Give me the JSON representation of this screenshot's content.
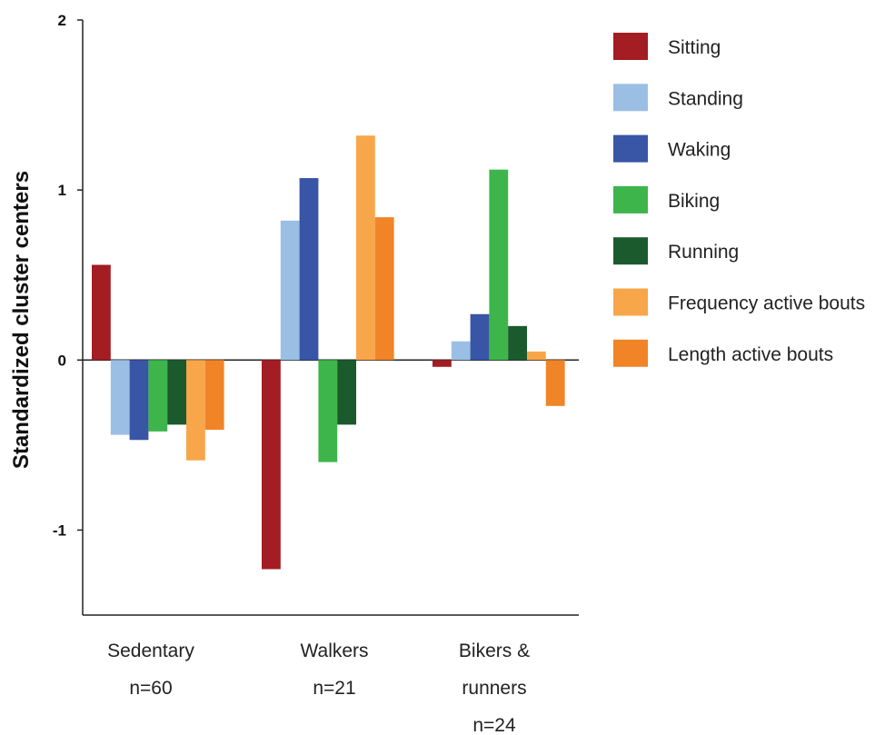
{
  "chart_data": {
    "type": "bar",
    "ylabel": "Standardized cluster centers",
    "xlabel": "",
    "ylim": [
      -1.5,
      2
    ],
    "yticks": [
      2,
      1,
      0,
      -1
    ],
    "ytick_labels": [
      "2",
      "1",
      "0",
      "-1"
    ],
    "categories": [
      {
        "name": "Sedentary",
        "n": "n=60",
        "lines": [
          "Sedentary",
          "n=60"
        ]
      },
      {
        "name": "Walkers",
        "n": "n=21",
        "lines": [
          "Walkers",
          "n=21"
        ]
      },
      {
        "name": "Bikers & runners",
        "n": "n=24",
        "lines": [
          "Bikers &",
          "runners",
          "n=24"
        ]
      }
    ],
    "series": [
      {
        "name": "Sitting",
        "color": "#a31d22",
        "values": [
          0.56,
          -1.23,
          -0.04
        ]
      },
      {
        "name": "Standing",
        "color": "#9bbfe4",
        "values": [
          -0.44,
          0.82,
          0.11
        ]
      },
      {
        "name": "Waking",
        "color": "#3955a6",
        "values": [
          -0.47,
          1.07,
          0.27
        ]
      },
      {
        "name": "Biking",
        "color": "#3db54a",
        "values": [
          -0.42,
          -0.6,
          1.12
        ]
      },
      {
        "name": "Running",
        "color": "#1b5a2d",
        "values": [
          -0.38,
          -0.38,
          0.2
        ]
      },
      {
        "name": "Frequency active bouts",
        "color": "#f8a64a",
        "values": [
          -0.59,
          1.32,
          0.05
        ]
      },
      {
        "name": "Length active bouts",
        "color": "#f08427",
        "values": [
          -0.41,
          0.84,
          -0.27
        ]
      }
    ],
    "legend_position": "right",
    "grid": false
  }
}
